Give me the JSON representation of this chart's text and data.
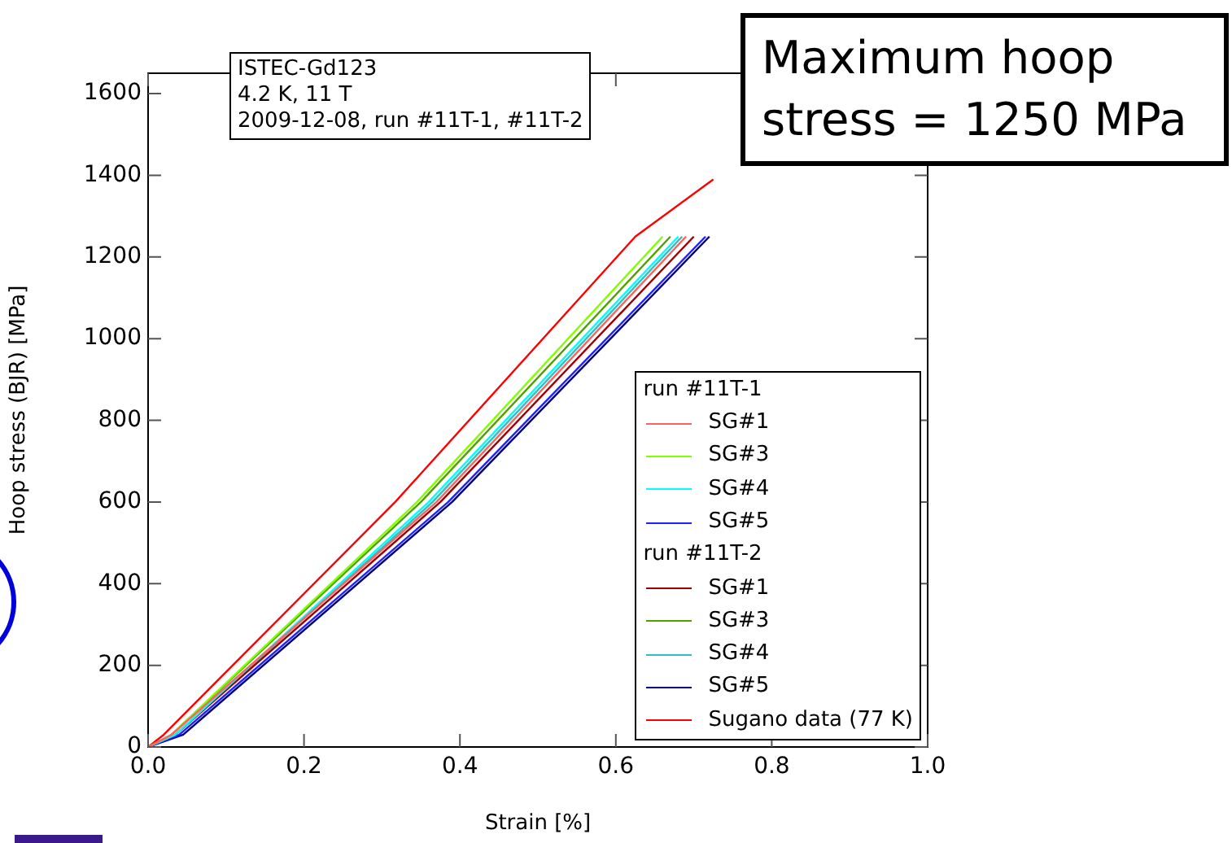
{
  "chart_data": {
    "type": "line",
    "xlabel": "Strain [%]",
    "ylabel": "Hoop stress (BJR) [MPa]",
    "xlim": [
      0,
      1
    ],
    "xticks": [
      {
        "value": 0,
        "label": "0.0"
      },
      0.2,
      0.4,
      0.6,
      0.8,
      {
        "value": 1,
        "label": "1.0"
      }
    ],
    "ylim": [
      0,
      1650
    ],
    "yticks": [
      0,
      200,
      400,
      600,
      800,
      1000,
      1200,
      1400,
      1600
    ],
    "grid": false,
    "legend": "bottom right",
    "legend_title": [
      "run #11T-1",
      "run #11T-2"
    ],
    "marker": "none",
    "line_style": "solid",
    "annotations": [
      "ISTEC-Gd123\n4.2 K, 11 T\n2009-12-08, run #11T-1, #11T-2",
      "Maximum hoop\nstress = 1250 MPa"
    ],
    "series": [
      {
        "name": "SG#1",
        "color": "#ff6060",
        "x": [
          0,
          0.03,
          0.37,
          0.69
        ],
        "values": [
          0,
          30,
          600,
          1250
        ]
      },
      {
        "name": "SG#3",
        "color": "#80ff00",
        "x": [
          0,
          0.03,
          0.345,
          0.66
        ],
        "values": [
          0,
          30,
          600,
          1250
        ]
      },
      {
        "name": "SG#4",
        "color": "#00ffff",
        "x": [
          0,
          0.035,
          0.36,
          0.68
        ],
        "values": [
          0,
          30,
          600,
          1250
        ]
      },
      {
        "name": "SG#5",
        "color": "#2020ff",
        "x": [
          0,
          0.04,
          0.385,
          0.715
        ],
        "values": [
          0,
          30,
          600,
          1250
        ]
      },
      {
        "name": "SG#1",
        "color": "#a00000",
        "x": [
          0,
          0.035,
          0.375,
          0.7
        ],
        "values": [
          0,
          30,
          600,
          1250
        ]
      },
      {
        "name": "SG#3",
        "color": "#50a000",
        "x": [
          0,
          0.03,
          0.35,
          0.67
        ],
        "values": [
          0,
          30,
          600,
          1250
        ]
      },
      {
        "name": "SG#4",
        "color": "#30c0c0",
        "x": [
          0,
          0.035,
          0.365,
          0.685
        ],
        "values": [
          0,
          30,
          600,
          1250
        ]
      },
      {
        "name": "SG#5",
        "color": "#000080",
        "x": [
          0,
          0.045,
          0.39,
          0.72
        ],
        "values": [
          0,
          30,
          600,
          1250
        ]
      },
      {
        "name": "Sugano data (77 K)",
        "color": "#ff0000",
        "x": [
          0,
          0.02,
          0.317,
          0.625,
          0.725
        ],
        "values": [
          0,
          30,
          600,
          1250,
          1390
        ]
      }
    ]
  }
}
